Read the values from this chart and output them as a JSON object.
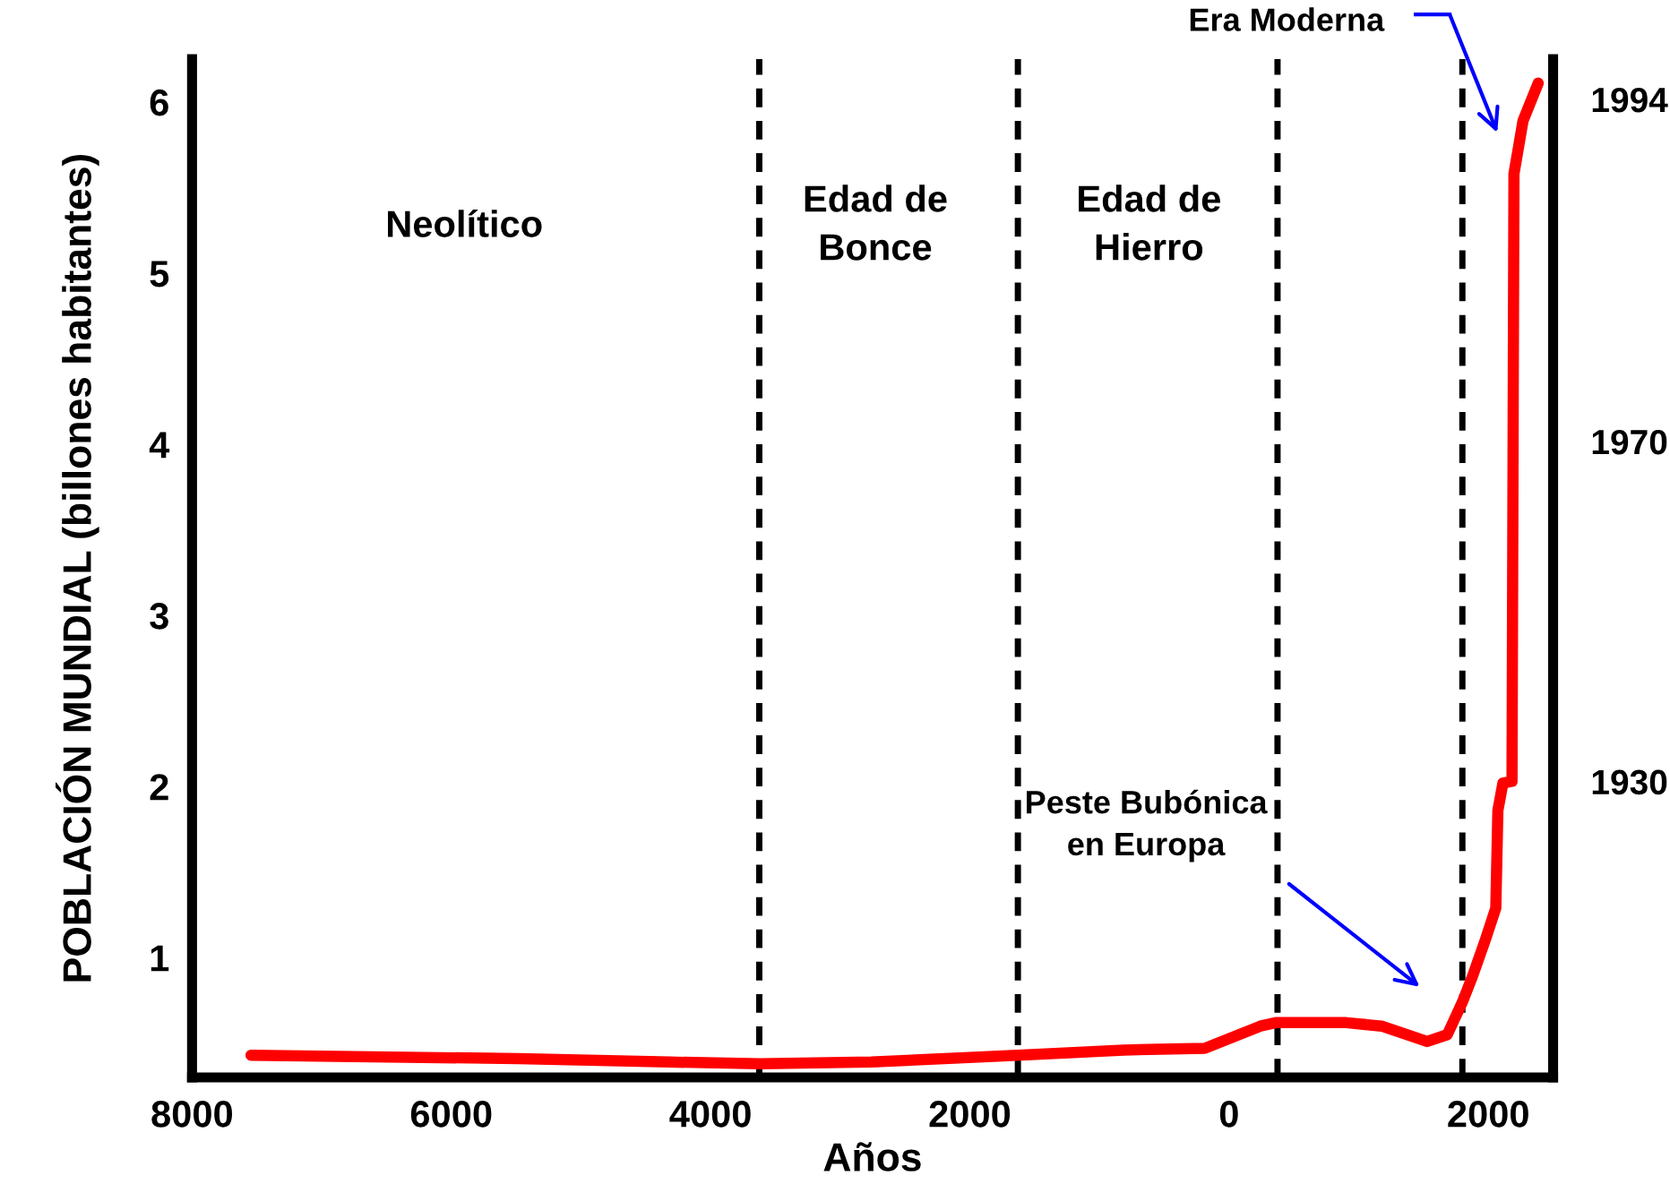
{
  "chart_data": {
    "type": "line",
    "xlabel": "Años",
    "ylabel": "POBLACIÓN MUNDIAL (billones habitantes)",
    "x": [
      -7545,
      -5487,
      -4318,
      -3617,
      -2760,
      -1630,
      -810,
      -187,
      242,
      360,
      904,
      1177,
      1528,
      1684,
      1800,
      1878,
      1980,
      2058,
      2074,
      2113,
      2183,
      2198,
      2268,
      2385
    ],
    "series": [
      {
        "color": "#ff0000",
        "values": [
          0.43,
          0.41,
          0.39,
          0.38,
          0.39,
          0.43,
          0.46,
          0.47,
          0.6,
          0.62,
          0.62,
          0.6,
          0.51,
          0.55,
          0.74,
          0.89,
          1.11,
          1.29,
          1.86,
          2.02,
          2.03,
          5.58,
          5.89,
          6.11
        ]
      }
    ],
    "xlim": [
      -8000,
      2500
    ],
    "ylim": [
      0.3,
      6.25
    ],
    "xticks": [
      {
        "value": -8000,
        "label": "8000"
      },
      {
        "value": -6000,
        "label": "6000"
      },
      {
        "value": -4000,
        "label": "4000"
      },
      {
        "value": -2000,
        "label": "2000"
      },
      0,
      2000
    ],
    "yticks": [
      1,
      2,
      3,
      4,
      5,
      6
    ],
    "ref_lines": [
      {
        "axis": "x",
        "value": -3624,
        "color": "#000000",
        "line_style": "dashed"
      },
      {
        "axis": "x",
        "value": -1629,
        "color": "#000000",
        "line_style": "dashed"
      },
      {
        "axis": "x",
        "value": 374,
        "color": "#000000",
        "line_style": "dashed"
      },
      {
        "axis": "x",
        "value": 1800,
        "color": "#000000",
        "line_style": "dashed"
      }
    ],
    "annotations": [
      "Neolítico",
      "Edad de\nBonce",
      "Edad de\nHierro",
      "Peste Bubónica\nen Europa",
      "Era Moderna",
      "1994",
      "1970",
      "1930"
    ],
    "grid": false,
    "legend": false,
    "line_style": "solid"
  }
}
